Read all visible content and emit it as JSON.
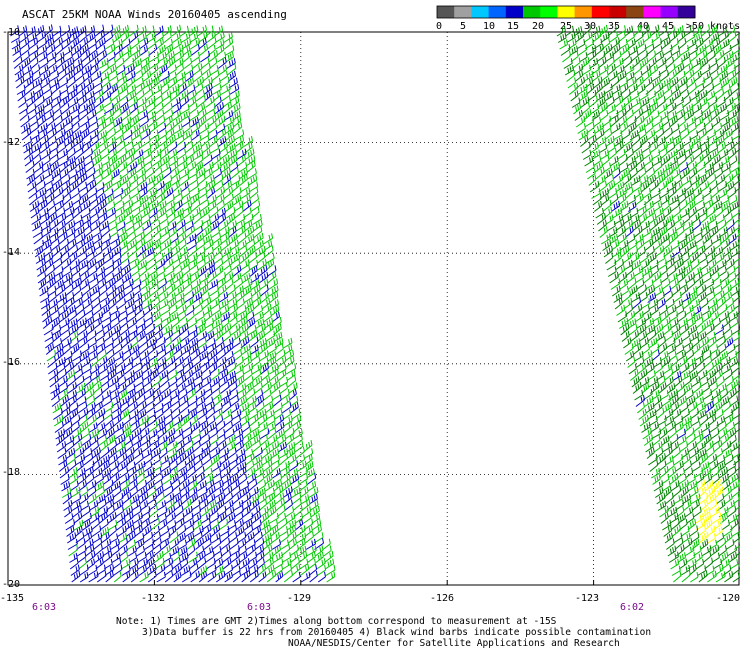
{
  "title": "ASCAT 25KM NOAA Winds 20160405 ascending",
  "legend": {
    "labels": [
      "0",
      "5",
      "10",
      "15",
      "20",
      "25",
      "30",
      "35",
      "40",
      "45",
      ">50 knots"
    ],
    "colors": [
      "#555555",
      "#a0a0a0",
      "#00c8ff",
      "#0064ff",
      "#0000c8",
      "#00c800",
      "#00ff00",
      "#ffff00",
      "#ff9600",
      "#ff0000",
      "#c80000",
      "#8b4513",
      "#ff00ff",
      "#9600ff",
      "#330099"
    ]
  },
  "axes": {
    "lat_labels": [
      "-10",
      "-12",
      "-14",
      "-16",
      "-18",
      "-20"
    ],
    "lon_labels": [
      "-135",
      "-132",
      "-129",
      "-126",
      "-123",
      "-120"
    ]
  },
  "times": [
    "6:03",
    "6:03",
    "6:02"
  ],
  "notes": {
    "line1": "Note: 1) Times are GMT 2)Times along bottom correspond to measurement at -15S",
    "line2": "3)Data buffer is 22 hrs from 20160405 4) Black wind barbs indicate possible contamination",
    "line3": "NOAA/NESDIS/Center for Satellite Applications and Research"
  },
  "map_data": {
    "lat_range": [
      -20,
      -10
    ],
    "lon_range": [
      -135,
      -120
    ],
    "swaths": [
      {
        "name": "west-swath",
        "barb_colors": [
          "#0000c8",
          "#00c800"
        ]
      },
      {
        "name": "east-swath",
        "barb_colors": [
          "#00c800",
          "#008000",
          "#0000c8",
          "#ffff00"
        ]
      }
    ]
  }
}
